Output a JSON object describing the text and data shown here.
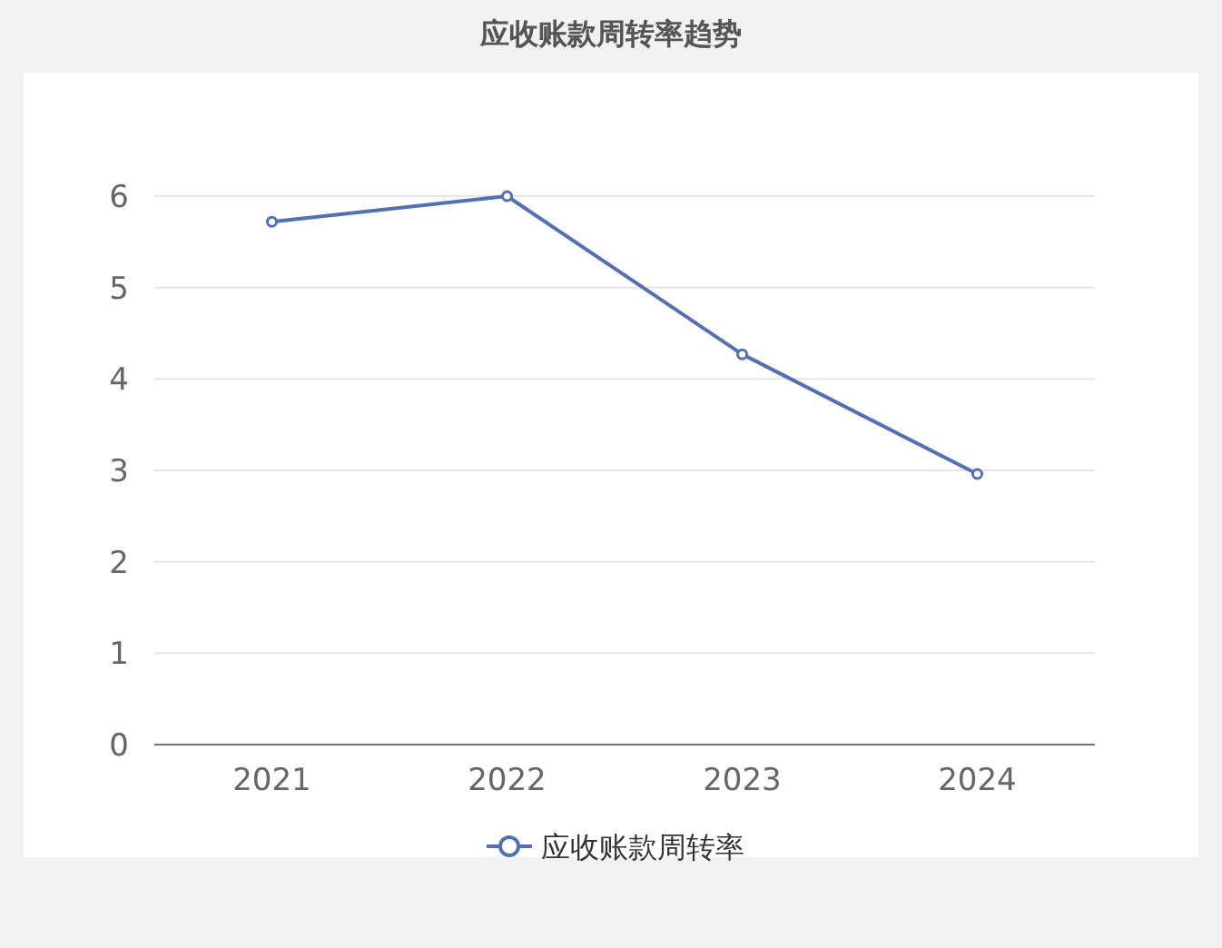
{
  "chart_data": {
    "type": "line",
    "title": "应收账款周转率趋势",
    "categories": [
      "2021",
      "2022",
      "2023",
      "2024"
    ],
    "series": [
      {
        "name": "应收账款周转率",
        "color": "#5470b0",
        "values": [
          5.72,
          6.0,
          4.27,
          2.96
        ]
      }
    ],
    "ylim": [
      0,
      6
    ],
    "yticks": [
      0,
      1,
      2,
      3,
      4,
      5,
      6
    ],
    "grid": "y",
    "legend": "bottom",
    "marker": "circle",
    "line_style": "solid"
  }
}
